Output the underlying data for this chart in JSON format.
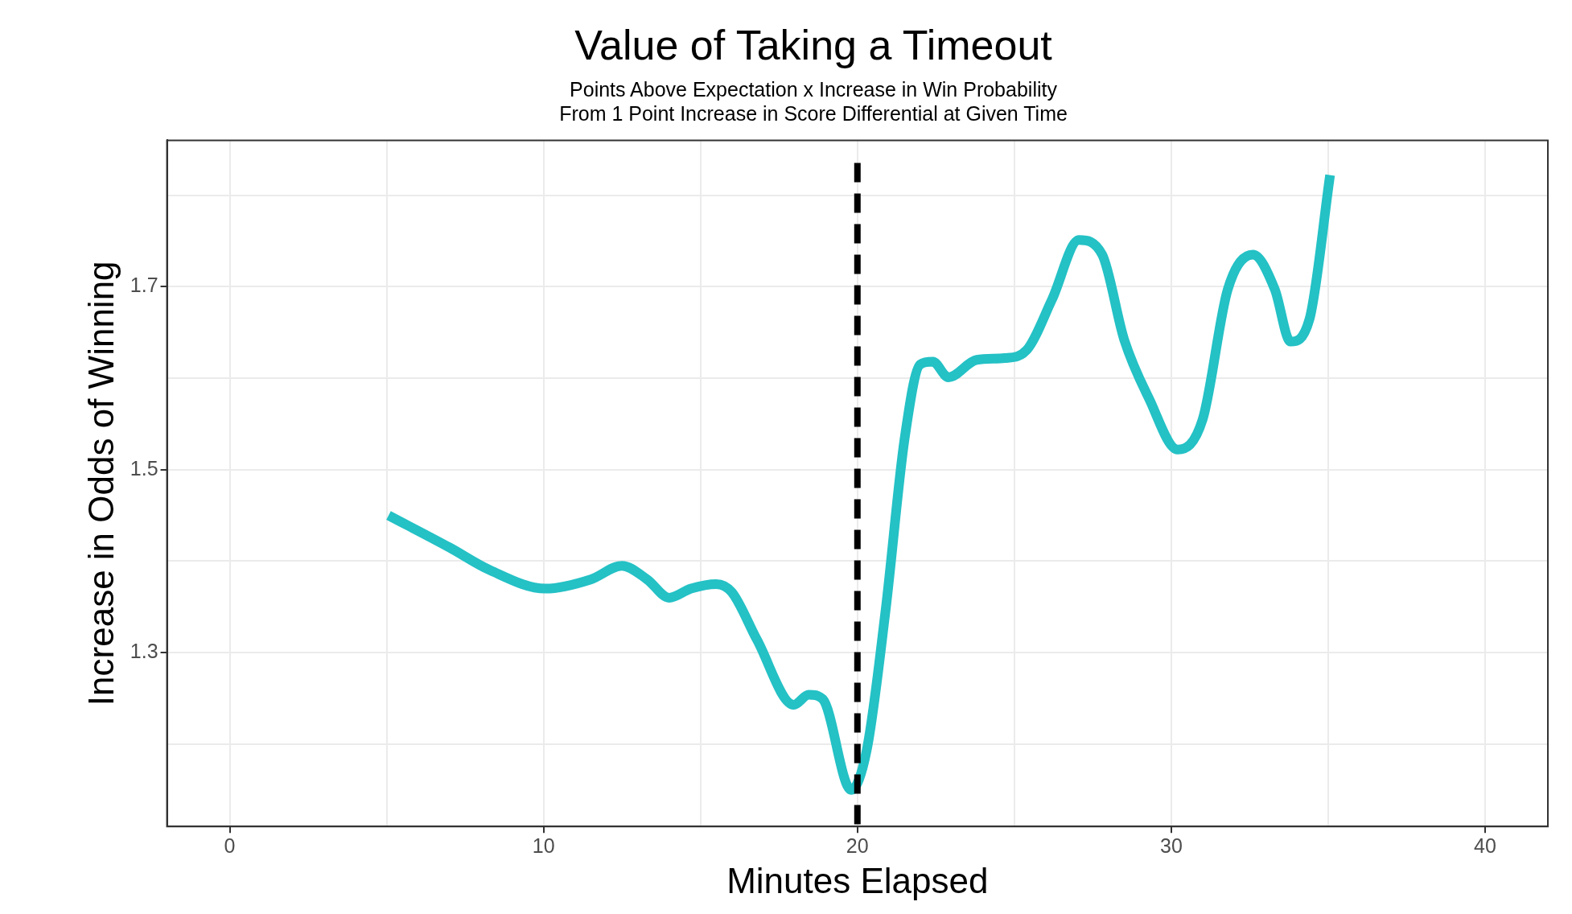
{
  "chart_data": {
    "type": "line",
    "title": "Value of Taking a Timeout",
    "subtitle": "Points Above Expectation x Increase in Win Probability\nFrom 1 Point Increase in Score Differential at Given Time",
    "xlabel": "Minutes Elapsed",
    "ylabel": "Increase in Odds of Winning",
    "x": [
      5.06,
      7.0,
      8.3,
      10.06,
      11.5,
      12.5,
      13.3,
      14.0,
      14.7,
      15.5,
      16.0,
      16.8,
      17.97,
      18.45,
      18.9,
      19.8,
      20.3,
      20.9,
      21.5,
      22.0,
      22.4,
      22.9,
      23.8,
      24.7,
      25.4,
      26.2,
      27.06,
      27.8,
      28.5,
      29.3,
      30.2,
      31.0,
      31.8,
      32.6,
      33.3,
      33.8,
      34.4,
      35.06
    ],
    "series": [
      {
        "color": "#24c1c5",
        "values": [
          1.45,
          1.415,
          1.39,
          1.37,
          1.38,
          1.395,
          1.38,
          1.36,
          1.37,
          1.375,
          1.366,
          1.314,
          1.243,
          1.254,
          1.249,
          1.15,
          1.194,
          1.347,
          1.533,
          1.615,
          1.618,
          1.601,
          1.62,
          1.622,
          1.631,
          1.686,
          1.751,
          1.735,
          1.642,
          1.577,
          1.522,
          1.555,
          1.697,
          1.735,
          1.697,
          1.64,
          1.664,
          1.822
        ]
      }
    ],
    "xlim": [
      -2,
      42
    ],
    "xticks": [
      0,
      {
        "value": 5,
        "label": null
      },
      10,
      {
        "value": 15,
        "label": null
      },
      20,
      {
        "value": 25,
        "label": null
      },
      30,
      {
        "value": 35,
        "label": null
      },
      40
    ],
    "ylim": [
      1.11,
      1.86
    ],
    "yticks": [
      {
        "value": 1.2,
        "label": null
      },
      1.3,
      {
        "value": 1.4,
        "label": null
      },
      1.5,
      {
        "value": 1.6,
        "label": null
      },
      1.7,
      {
        "value": 1.8,
        "label": null
      }
    ],
    "ref_lines": [
      {
        "axis": "x",
        "value": 20,
        "color": "#000000",
        "line_style": "dashed"
      }
    ],
    "grid": true,
    "legend": false,
    "marker": "none",
    "line_style": "solid"
  }
}
